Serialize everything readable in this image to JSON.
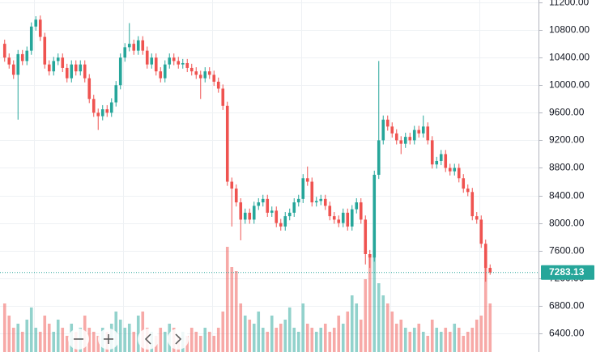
{
  "chart_data": {
    "type": "candlestick",
    "open": [
      10600,
      10400,
      10300,
      10150,
      10450,
      10350,
      10500,
      10850,
      10950,
      10700,
      10300,
      10200,
      10350,
      10400,
      10250,
      10100,
      10300,
      10200,
      10300,
      10100,
      9800,
      9600,
      9550,
      9650,
      9600,
      9750,
      10000,
      10400,
      10550,
      10600,
      10500,
      10650,
      10500,
      10300,
      10400,
      10200,
      10100,
      10300,
      10400,
      10350,
      10300,
      10320,
      10250,
      10200,
      10150,
      10100,
      10200,
      10150,
      10050,
      9950,
      9700,
      8600,
      8500,
      8300,
      8050,
      8150,
      8050,
      8250,
      8300,
      8350,
      8150,
      8180,
      8000,
      7950,
      8100,
      8150,
      8300,
      8350,
      8650,
      8600,
      8300,
      8320,
      8350,
      8250,
      8100,
      8050,
      8000,
      8150,
      7950,
      8200,
      8300,
      8050,
      7550,
      7500,
      8700,
      9200,
      9500,
      9400,
      9300,
      9200,
      9150,
      9250,
      9200,
      9350,
      9300,
      9400,
      9200,
      8850,
      8900,
      9000,
      8800,
      8750,
      8800,
      8650,
      8500,
      8450,
      8100,
      8050,
      7700,
      7350
    ],
    "high": [
      10660,
      10460,
      10360,
      10510,
      10510,
      10560,
      10910,
      11000,
      11010,
      10760,
      10360,
      10410,
      10460,
      10460,
      10310,
      10360,
      10360,
      10360,
      10360,
      10160,
      9860,
      9660,
      9710,
      9710,
      9810,
      10060,
      10460,
      10610,
      10900,
      10660,
      10710,
      10710,
      10560,
      10460,
      10460,
      10260,
      10360,
      10460,
      10460,
      10410,
      10380,
      10380,
      10310,
      10260,
      10210,
      10260,
      10260,
      10210,
      10110,
      10010,
      9760,
      8660,
      8560,
      8360,
      8210,
      8210,
      8310,
      8360,
      8410,
      8410,
      8240,
      8240,
      8060,
      8160,
      8210,
      8360,
      8410,
      8710,
      8820,
      8660,
      8380,
      8410,
      8410,
      8310,
      8160,
      8110,
      8210,
      8210,
      8260,
      8360,
      8360,
      8110,
      7610,
      8760,
      10350,
      9560,
      9560,
      9460,
      9360,
      9260,
      9310,
      9310,
      9410,
      9410,
      9560,
      9460,
      9260,
      8960,
      9060,
      9060,
      8860,
      8860,
      8860,
      8710,
      8560,
      8510,
      8160,
      8110,
      7760,
      7400
    ],
    "low": [
      10340,
      10240,
      10090,
      9500,
      10290,
      10290,
      10440,
      10790,
      10640,
      10240,
      10140,
      10140,
      10290,
      10190,
      10040,
      10040,
      10140,
      10140,
      10040,
      9740,
      9540,
      9350,
      9490,
      9540,
      9540,
      9690,
      9940,
      10340,
      10490,
      10440,
      10440,
      10440,
      10240,
      10240,
      10140,
      10040,
      10040,
      10240,
      10290,
      10240,
      10240,
      10190,
      10140,
      10090,
      9800,
      10040,
      10090,
      9990,
      9890,
      9640,
      8540,
      7950,
      8240,
      7750,
      7990,
      7990,
      7990,
      8190,
      8240,
      8090,
      8090,
      7940,
      7890,
      7890,
      8040,
      8090,
      8240,
      8290,
      8540,
      8240,
      8240,
      8260,
      8190,
      8040,
      7990,
      7940,
      7940,
      7890,
      7890,
      8140,
      7990,
      7400,
      7350,
      7440,
      8640,
      9140,
      9340,
      9240,
      9140,
      9000,
      9090,
      9140,
      9140,
      9240,
      9240,
      9140,
      8790,
      8790,
      8840,
      8740,
      8690,
      8690,
      8590,
      8440,
      8390,
      8040,
      7990,
      7640,
      7150,
      7250
    ],
    "close": [
      10400,
      10300,
      10150,
      10450,
      10350,
      10500,
      10850,
      10950,
      10700,
      10300,
      10200,
      10350,
      10400,
      10250,
      10100,
      10300,
      10200,
      10300,
      10100,
      9800,
      9600,
      9550,
      9650,
      9600,
      9750,
      10000,
      10400,
      10550,
      10600,
      10500,
      10650,
      10500,
      10300,
      10400,
      10200,
      10100,
      10300,
      10400,
      10350,
      10300,
      10320,
      10250,
      10200,
      10150,
      10100,
      10200,
      10150,
      10050,
      9950,
      9700,
      8600,
      8500,
      8300,
      8050,
      8150,
      8050,
      8250,
      8300,
      8350,
      8150,
      8180,
      8000,
      7950,
      8100,
      8150,
      8300,
      8350,
      8650,
      8600,
      8300,
      8320,
      8350,
      8250,
      8100,
      8050,
      8000,
      8150,
      7950,
      8200,
      8300,
      8050,
      7550,
      7500,
      8700,
      9200,
      9500,
      9400,
      9300,
      9200,
      9150,
      9250,
      9200,
      9350,
      9300,
      9400,
      9200,
      8850,
      8900,
      9000,
      8800,
      8750,
      8800,
      8650,
      8500,
      8450,
      8100,
      8050,
      7700,
      7350,
      7283.13
    ],
    "volume": [
      60,
      45,
      30,
      35,
      25,
      40,
      55,
      30,
      25,
      45,
      35,
      25,
      40,
      30,
      20,
      35,
      25,
      30,
      45,
      30,
      25,
      20,
      30,
      25,
      35,
      50,
      40,
      30,
      35,
      25,
      45,
      50,
      30,
      25,
      20,
      30,
      25,
      35,
      30,
      20,
      25,
      20,
      30,
      25,
      20,
      30,
      25,
      20,
      30,
      50,
      130,
      105,
      100,
      60,
      45,
      40,
      35,
      50,
      30,
      25,
      45,
      30,
      35,
      40,
      55,
      30,
      25,
      60,
      35,
      30,
      25,
      30,
      35,
      25,
      30,
      45,
      35,
      50,
      70,
      60,
      40,
      90,
      120,
      150,
      85,
      70,
      60,
      50,
      35,
      40,
      30,
      25,
      30,
      35,
      25,
      20,
      40,
      30,
      25,
      30,
      25,
      35,
      30,
      20,
      25,
      30,
      40,
      45,
      125,
      60
    ],
    "up_color": "#26a69a",
    "down_color": "#ef5350",
    "ylim": [
      6130,
      11235
    ],
    "yticks": [
      {
        "value": 6400,
        "label": "6400.00"
      },
      {
        "value": 6800,
        "label": "6800.00"
      },
      {
        "value": 7200,
        "label": "7200.00"
      },
      {
        "value": 7600,
        "label": "7600.00"
      },
      {
        "value": 8000,
        "label": "8000.00"
      },
      {
        "value": 8400,
        "label": "8400.00"
      },
      {
        "value": 8800,
        "label": "8800.00"
      },
      {
        "value": 9200,
        "label": "9200.00"
      },
      {
        "value": 9600,
        "label": "9600.00"
      },
      {
        "value": 10000,
        "label": "10000.00"
      },
      {
        "value": 10400,
        "label": "10400.00"
      },
      {
        "value": 10800,
        "label": "10800.00"
      },
      {
        "value": 11200,
        "label": "11200.00"
      }
    ],
    "grid": true
  }
}
